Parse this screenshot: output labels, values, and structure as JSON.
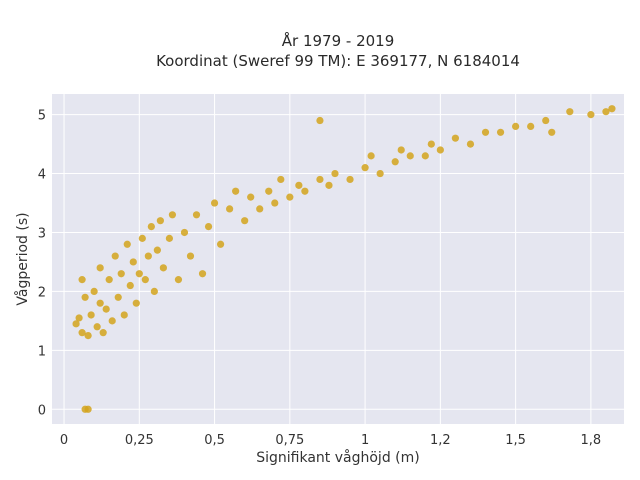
{
  "chart_data": {
    "type": "scatter",
    "title_line1": "År 1979 - 2019",
    "title_line2": "Koordinat (Sweref 99 TM): E 369177, N 6184014",
    "xlabel": "Signifikant våghöjd (m)",
    "ylabel": "Vågperiod (s)",
    "xlim": [
      -0.04,
      1.86
    ],
    "ylim": [
      -0.25,
      5.35
    ],
    "x_ticks": [
      {
        "value": 0,
        "label": "0"
      },
      {
        "value": 0.25,
        "label": "0,25"
      },
      {
        "value": 0.5,
        "label": "0,5"
      },
      {
        "value": 0.75,
        "label": "0,75"
      },
      {
        "value": 1,
        "label": "1"
      },
      {
        "value": 1.25,
        "label": "1,2"
      },
      {
        "value": 1.5,
        "label": "1,5"
      },
      {
        "value": 1.75,
        "label": "1,8"
      }
    ],
    "y_ticks": [
      {
        "value": 0,
        "label": "0"
      },
      {
        "value": 1,
        "label": "1"
      },
      {
        "value": 2,
        "label": "2"
      },
      {
        "value": 3,
        "label": "3"
      },
      {
        "value": 4,
        "label": "4"
      },
      {
        "value": 5,
        "label": "5"
      }
    ],
    "grid": true,
    "colors": {
      "marker": "#d4a31c",
      "plot_bg": "#e5e6f0",
      "grid": "#ffffff"
    },
    "series": [
      {
        "points": [
          [
            0.07,
            0.0
          ],
          [
            0.08,
            0.0
          ],
          [
            0.04,
            1.45
          ],
          [
            0.05,
            1.55
          ],
          [
            0.06,
            1.3
          ],
          [
            0.06,
            2.2
          ],
          [
            0.07,
            1.9
          ],
          [
            0.08,
            1.25
          ],
          [
            0.09,
            1.6
          ],
          [
            0.1,
            2.0
          ],
          [
            0.11,
            1.4
          ],
          [
            0.12,
            1.8
          ],
          [
            0.12,
            2.4
          ],
          [
            0.13,
            1.3
          ],
          [
            0.14,
            1.7
          ],
          [
            0.15,
            2.2
          ],
          [
            0.16,
            1.5
          ],
          [
            0.17,
            2.6
          ],
          [
            0.18,
            1.9
          ],
          [
            0.19,
            2.3
          ],
          [
            0.2,
            1.6
          ],
          [
            0.21,
            2.8
          ],
          [
            0.22,
            2.1
          ],
          [
            0.23,
            2.5
          ],
          [
            0.24,
            1.8
          ],
          [
            0.25,
            2.3
          ],
          [
            0.26,
            2.9
          ],
          [
            0.27,
            2.2
          ],
          [
            0.28,
            2.6
          ],
          [
            0.29,
            3.1
          ],
          [
            0.3,
            2.0
          ],
          [
            0.31,
            2.7
          ],
          [
            0.32,
            3.2
          ],
          [
            0.33,
            2.4
          ],
          [
            0.35,
            2.9
          ],
          [
            0.36,
            3.3
          ],
          [
            0.38,
            2.2
          ],
          [
            0.4,
            3.0
          ],
          [
            0.42,
            2.6
          ],
          [
            0.44,
            3.3
          ],
          [
            0.46,
            2.3
          ],
          [
            0.48,
            3.1
          ],
          [
            0.5,
            3.5
          ],
          [
            0.52,
            2.8
          ],
          [
            0.55,
            3.4
          ],
          [
            0.57,
            3.7
          ],
          [
            0.6,
            3.2
          ],
          [
            0.62,
            3.6
          ],
          [
            0.65,
            3.4
          ],
          [
            0.68,
            3.7
          ],
          [
            0.7,
            3.5
          ],
          [
            0.72,
            3.9
          ],
          [
            0.75,
            3.6
          ],
          [
            0.78,
            3.8
          ],
          [
            0.8,
            3.7
          ],
          [
            0.85,
            4.9
          ],
          [
            0.85,
            3.9
          ],
          [
            0.88,
            3.8
          ],
          [
            0.9,
            4.0
          ],
          [
            0.95,
            3.9
          ],
          [
            1.0,
            4.1
          ],
          [
            1.02,
            4.3
          ],
          [
            1.05,
            4.0
          ],
          [
            1.1,
            4.2
          ],
          [
            1.12,
            4.4
          ],
          [
            1.15,
            4.3
          ],
          [
            1.2,
            4.3
          ],
          [
            1.22,
            4.5
          ],
          [
            1.25,
            4.4
          ],
          [
            1.3,
            4.6
          ],
          [
            1.35,
            4.5
          ],
          [
            1.4,
            4.7
          ],
          [
            1.45,
            4.7
          ],
          [
            1.5,
            4.8
          ],
          [
            1.55,
            4.8
          ],
          [
            1.6,
            4.9
          ],
          [
            1.62,
            4.7
          ],
          [
            1.68,
            5.05
          ],
          [
            1.75,
            5.0
          ],
          [
            1.8,
            5.05
          ],
          [
            1.82,
            5.1
          ]
        ]
      }
    ]
  }
}
